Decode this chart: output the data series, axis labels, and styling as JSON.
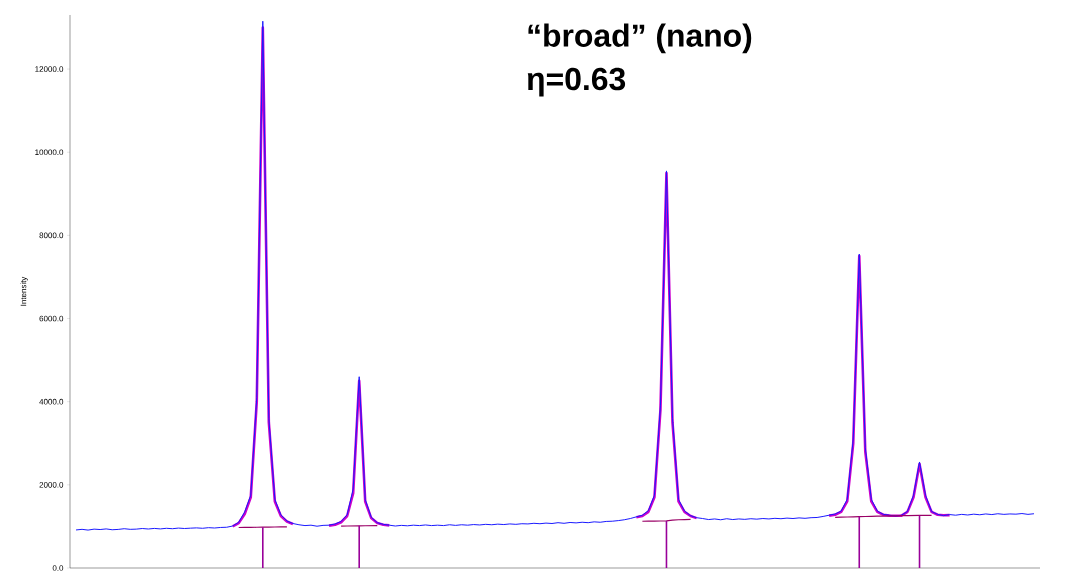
{
  "chart_data": {
    "type": "line",
    "title": "“broad” (nano)",
    "subtitle": "η=0.63",
    "ylabel": "Intensity",
    "tick_labels": "y",
    "categories": [
      null,
      null,
      null,
      null,
      null,
      null,
      null,
      null,
      null,
      null,
      null,
      null,
      null,
      null,
      null,
      null,
      null,
      null,
      null,
      null,
      null,
      null,
      null,
      null,
      null,
      null,
      null,
      null,
      null,
      null,
      null,
      null,
      null,
      null,
      null,
      null,
      null,
      null,
      null,
      null,
      null,
      null,
      null,
      null,
      null,
      null,
      null,
      null,
      null,
      null,
      null,
      null,
      null,
      null,
      null,
      null,
      null,
      null,
      null,
      null,
      null,
      null,
      null,
      null,
      null,
      null,
      null,
      null,
      null,
      null,
      null,
      null,
      null,
      null,
      null,
      null,
      null,
      null,
      null,
      null,
      null,
      null,
      null,
      null,
      null,
      null,
      null,
      null,
      null,
      null,
      null,
      null,
      null,
      null,
      null,
      null,
      null,
      null,
      null,
      null,
      null,
      null,
      null,
      null,
      null,
      null,
      null,
      null,
      null,
      null,
      null,
      null,
      null,
      null,
      null,
      null,
      null,
      null,
      null,
      null,
      null,
      null,
      null,
      null,
      null,
      null,
      null,
      null,
      null,
      null,
      null,
      null,
      null,
      null,
      null,
      null,
      null,
      null,
      null,
      null,
      null,
      null,
      null,
      null,
      null,
      null,
      null,
      null,
      null,
      null,
      null,
      null,
      null,
      null,
      null,
      null,
      null,
      null,
      null,
      null
    ],
    "ylim": [
      0,
      13300
    ],
    "yticks": [
      {
        "value": 0,
        "label": "0.0"
      },
      {
        "value": 2000,
        "label": "2000.0"
      },
      {
        "value": 4000,
        "label": "4000.0"
      },
      {
        "value": 6000,
        "label": "6000.0"
      },
      {
        "value": 8000,
        "label": "8000.0"
      },
      {
        "value": 10000,
        "label": "10000.0"
      },
      {
        "value": 12000,
        "label": "12000.0"
      }
    ],
    "series": [
      {
        "color": "#1a1aff",
        "values": [
          915,
          930,
          912,
          935,
          925,
          940,
          920,
          928,
          945,
          930,
          935,
          950,
          938,
          952,
          940,
          955,
          945,
          960,
          950,
          958,
          965,
          955,
          970,
          962,
          975,
          980,
          1010,
          1100,
          1350,
          1750,
          4100,
          13150,
          3600,
          1650,
          1280,
          1130,
          1070,
          1040,
          1020,
          1030,
          1005,
          1025,
          1030,
          1060,
          1120,
          1280,
          1900,
          4600,
          1650,
          1220,
          1090,
          1050,
          1030,
          1010,
          1025,
          1015,
          1030,
          1020,
          1035,
          1020,
          1030,
          1020,
          1040,
          1025,
          1040,
          1030,
          1045,
          1035,
          1050,
          1040,
          1055,
          1045,
          1060,
          1050,
          1065,
          1060,
          1075,
          1065,
          1080,
          1070,
          1090,
          1075,
          1095,
          1085,
          1100,
          1090,
          1110,
          1100,
          1120,
          1125,
          1140,
          1160,
          1190,
          1230,
          1270,
          1380,
          1750,
          3900,
          9550,
          3600,
          1650,
          1370,
          1260,
          1210,
          1190,
          1165,
          1180,
          1160,
          1185,
          1165,
          1180,
          1170,
          1185,
          1175,
          1190,
          1180,
          1195,
          1185,
          1200,
          1190,
          1205,
          1195,
          1210,
          1215,
          1240,
          1270,
          1300,
          1370,
          1650,
          3100,
          7550,
          2900,
          1650,
          1370,
          1290,
          1270,
          1250,
          1270,
          1360,
          1750,
          2550,
          1750,
          1360,
          1290,
          1260,
          1285,
          1270,
          1290,
          1275,
          1295,
          1280,
          1300,
          1285,
          1305,
          1290,
          1300,
          1295,
          1310,
          1290,
          1305
        ]
      },
      {
        "color": "#cc00cc",
        "values": [
          null,
          null,
          null,
          null,
          null,
          null,
          null,
          null,
          null,
          null,
          null,
          null,
          null,
          null,
          null,
          null,
          null,
          null,
          null,
          null,
          null,
          null,
          null,
          null,
          null,
          null,
          1000,
          1080,
          1300,
          1700,
          4000,
          13000,
          3500,
          1600,
          1250,
          1120,
          1060,
          null,
          null,
          null,
          null,
          null,
          1020,
          1040,
          1100,
          1250,
          1800,
          4500,
          1600,
          1200,
          1080,
          1040,
          1025,
          null,
          null,
          null,
          null,
          null,
          null,
          null,
          null,
          null,
          null,
          null,
          null,
          null,
          null,
          null,
          null,
          null,
          null,
          null,
          null,
          null,
          null,
          null,
          null,
          null,
          null,
          null,
          null,
          null,
          null,
          null,
          null,
          null,
          null,
          null,
          null,
          null,
          null,
          null,
          null,
          1220,
          1250,
          1350,
          1700,
          3800,
          9500,
          3500,
          1600,
          1350,
          1250,
          1200,
          null,
          null,
          null,
          null,
          null,
          null,
          null,
          null,
          null,
          null,
          null,
          null,
          null,
          null,
          null,
          null,
          null,
          null,
          null,
          null,
          null,
          1260,
          1280,
          1350,
          1600,
          3000,
          7500,
          2800,
          1600,
          1350,
          1280,
          1260,
          1255,
          1260,
          1350,
          1700,
          2500,
          1700,
          1350,
          1280,
          1270,
          1272,
          null,
          null,
          null,
          null,
          null,
          null,
          null,
          null,
          null,
          null,
          null,
          null,
          null,
          null
        ]
      },
      {
        "color": "#990066",
        "values": [
          null,
          null,
          null,
          null,
          null,
          null,
          null,
          null,
          null,
          null,
          null,
          null,
          null,
          null,
          null,
          null,
          null,
          null,
          null,
          null,
          null,
          null,
          null,
          null,
          null,
          null,
          null,
          974,
          976,
          978,
          980,
          982,
          984,
          986,
          988,
          990,
          null,
          null,
          null,
          null,
          null,
          null,
          null,
          null,
          1008,
          1010,
          1012,
          1014,
          1016,
          1018,
          1020,
          null,
          null,
          null,
          null,
          null,
          null,
          null,
          null,
          null,
          null,
          null,
          null,
          null,
          null,
          null,
          null,
          null,
          null,
          null,
          null,
          null,
          null,
          null,
          null,
          null,
          null,
          null,
          null,
          null,
          null,
          null,
          null,
          null,
          null,
          null,
          null,
          null,
          null,
          null,
          null,
          null,
          null,
          null,
          1124,
          1126,
          1128,
          1130,
          1132,
          1150,
          1160,
          1165,
          1168,
          null,
          null,
          null,
          null,
          null,
          null,
          null,
          null,
          null,
          null,
          null,
          null,
          null,
          null,
          null,
          null,
          null,
          null,
          null,
          null,
          null,
          null,
          null,
          1218,
          1222,
          1226,
          1230,
          1234,
          1238,
          1242,
          1246,
          1250,
          1254,
          1256,
          1258,
          1260,
          1262,
          1264,
          1266,
          1268,
          null,
          null,
          null,
          null,
          null,
          null,
          null,
          null,
          null,
          null,
          null,
          null,
          null,
          null,
          null,
          null,
          null
        ]
      },
      {
        "type": "bar",
        "color": "#990099",
        "values": [
          null,
          null,
          null,
          null,
          null,
          null,
          null,
          null,
          null,
          null,
          null,
          null,
          null,
          null,
          null,
          null,
          null,
          null,
          null,
          null,
          null,
          null,
          null,
          null,
          null,
          null,
          null,
          null,
          null,
          null,
          null,
          982,
          null,
          null,
          null,
          null,
          null,
          null,
          null,
          null,
          null,
          null,
          null,
          null,
          null,
          null,
          null,
          1014,
          null,
          null,
          null,
          null,
          null,
          null,
          null,
          null,
          null,
          null,
          null,
          null,
          null,
          null,
          null,
          null,
          null,
          null,
          null,
          null,
          null,
          null,
          null,
          null,
          null,
          null,
          null,
          null,
          null,
          null,
          null,
          null,
          null,
          null,
          null,
          null,
          null,
          null,
          null,
          null,
          null,
          null,
          null,
          null,
          null,
          null,
          null,
          null,
          null,
          null,
          1132,
          null,
          null,
          null,
          null,
          null,
          null,
          null,
          null,
          null,
          null,
          null,
          null,
          null,
          null,
          null,
          null,
          null,
          null,
          null,
          null,
          null,
          null,
          null,
          null,
          null,
          null,
          null,
          null,
          null,
          null,
          null,
          1234,
          null,
          null,
          null,
          null,
          null,
          null,
          null,
          null,
          null,
          1264,
          null,
          null,
          null,
          null,
          null,
          null,
          null,
          null,
          null,
          null,
          null,
          null,
          null,
          null,
          null,
          null,
          null,
          null,
          null
        ]
      }
    ]
  }
}
